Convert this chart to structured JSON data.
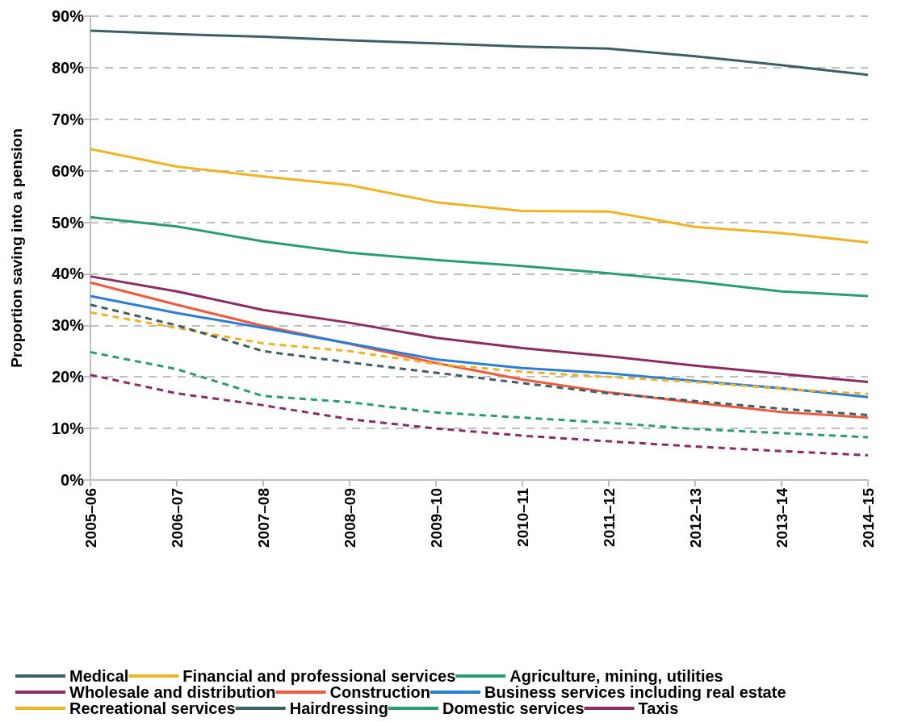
{
  "chart_data": {
    "type": "line",
    "ylabel": "Proportion saving into a pension",
    "categories": [
      "2005–06",
      "2006–07",
      "2007–08",
      "2008–09",
      "2009–10",
      "2010–11",
      "2011–12",
      "2012–13",
      "2013–14",
      "2014–15"
    ],
    "ylim": [
      0,
      90
    ],
    "yticks": [
      {
        "value": 0,
        "label": "0%"
      },
      {
        "value": 10,
        "label": "10%"
      },
      {
        "value": 20,
        "label": "20%"
      },
      {
        "value": 30,
        "label": "30%"
      },
      {
        "value": 40,
        "label": "40%"
      },
      {
        "value": 50,
        "label": "50%"
      },
      {
        "value": 60,
        "label": "60%"
      },
      {
        "value": 70,
        "label": "70%"
      },
      {
        "value": 80,
        "label": "80%"
      },
      {
        "value": 90,
        "label": "90%"
      }
    ],
    "grid": "y",
    "legend": "bottom",
    "marker": "none",
    "series": [
      {
        "name": "Medical",
        "color": "#3d5f66",
        "line_style": "solid",
        "values": [
          87.2,
          86.5,
          86,
          85.3,
          84.7,
          84.1,
          83.7,
          82.2,
          80.5,
          78.6
        ]
      },
      {
        "name": "Financial and professional services",
        "color": "#f0b323",
        "line_style": "solid",
        "values": [
          64.2,
          60.8,
          58.9,
          57.2,
          53.9,
          52.2,
          52.1,
          49.1,
          47.9,
          46.1
        ]
      },
      {
        "name": "Agriculture, mining, utilities",
        "color": "#2a9d78",
        "line_style": "solid",
        "values": [
          51,
          49.2,
          46.3,
          44.1,
          42.7,
          41.5,
          40.1,
          38.5,
          36.6,
          35.7
        ]
      },
      {
        "name": "Wholesale and distribution",
        "color": "#8b2d63",
        "line_style": "solid",
        "values": [
          39.5,
          36.6,
          33,
          30.5,
          27.6,
          25.6,
          24,
          22.2,
          20.6,
          19
        ]
      },
      {
        "name": "Construction",
        "color": "#ee5a3c",
        "line_style": "solid",
        "values": [
          38.3,
          34,
          29.9,
          26.4,
          22.7,
          19.5,
          17,
          15,
          13.2,
          12.1
        ]
      },
      {
        "name": "Business services including real estate",
        "color": "#2a7fd4",
        "line_style": "solid",
        "values": [
          35.7,
          32.4,
          29.5,
          26.5,
          23.4,
          21.7,
          20.7,
          19.2,
          17.8,
          16.1
        ]
      },
      {
        "name": "Recreational services",
        "color": "#f0b323",
        "line_style": "dashed",
        "values": [
          32.5,
          29.5,
          26.5,
          25,
          22.5,
          21,
          20,
          19,
          17.7,
          16.7
        ]
      },
      {
        "name": "Hairdressing",
        "color": "#3d5f66",
        "line_style": "dashed",
        "values": [
          34,
          30,
          25,
          22.8,
          20.8,
          18.8,
          16.8,
          15.3,
          13.8,
          12.6
        ]
      },
      {
        "name": "Domestic services",
        "color": "#2a9d78",
        "line_style": "dashed",
        "values": [
          24.8,
          21.5,
          16.3,
          15.1,
          13.1,
          12.1,
          11.1,
          9.9,
          9.1,
          8.3
        ]
      },
      {
        "name": "Taxis",
        "color": "#8b2d63",
        "line_style": "dashed",
        "values": [
          20.4,
          16.8,
          14.5,
          11.8,
          10,
          8.6,
          7.5,
          6.5,
          5.6,
          4.8
        ]
      }
    ]
  }
}
